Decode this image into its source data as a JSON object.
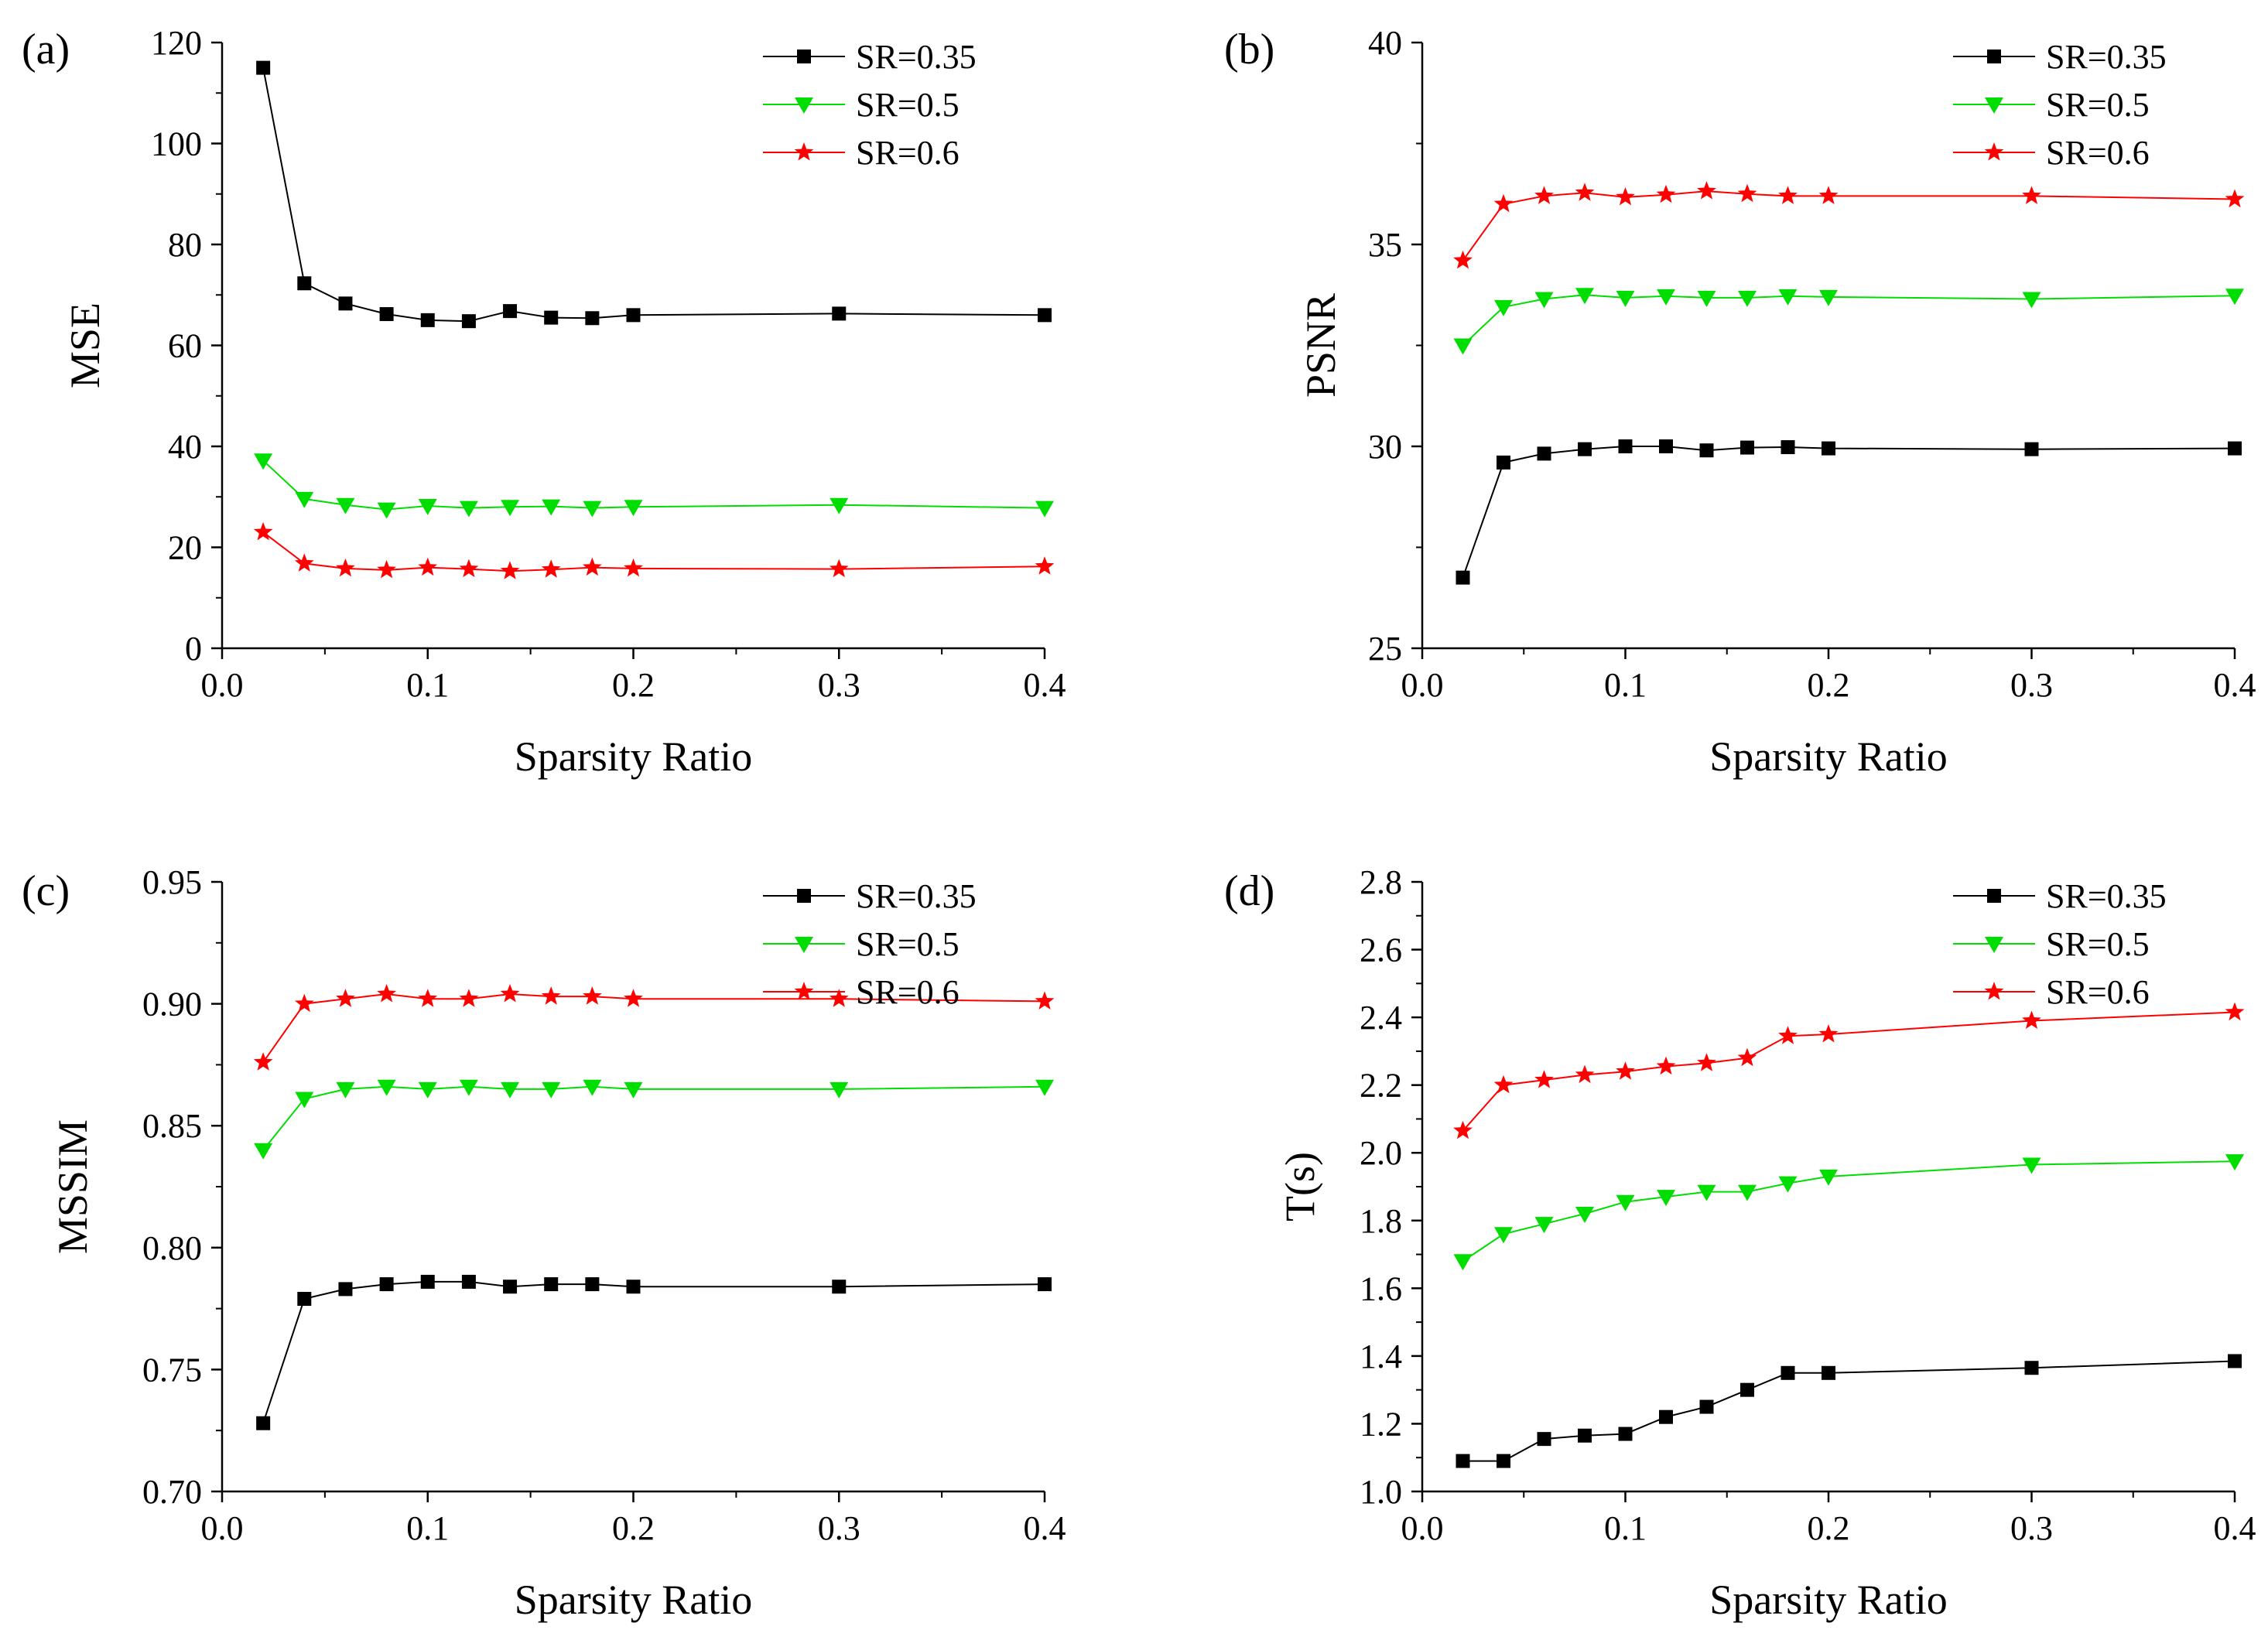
{
  "chart_data": [
    {
      "type": "line",
      "panel_label": "(a)",
      "xlabel": "Sparsity Ratio",
      "ylabel": "MSE",
      "xlim": [
        0.0,
        0.4
      ],
      "ylim": [
        0,
        120
      ],
      "xticks": [
        "0.0",
        "0.1",
        "0.2",
        "0.3",
        "0.4"
      ],
      "yticks": [
        "0",
        "20",
        "40",
        "60",
        "80",
        "100",
        "120"
      ],
      "legend_position": "top-right",
      "x": [
        0.02,
        0.04,
        0.06,
        0.08,
        0.1,
        0.12,
        0.14,
        0.16,
        0.18,
        0.2,
        0.3,
        0.4
      ],
      "series": [
        {
          "name": "SR=0.35",
          "color": "#000000",
          "marker": "square",
          "values": [
            115,
            72.3,
            68.3,
            66.2,
            65.0,
            64.8,
            66.8,
            65.5,
            65.4,
            66.0,
            66.3,
            66.0
          ]
        },
        {
          "name": "SR=0.5",
          "color": "#00dd00",
          "marker": "triangle-down",
          "values": [
            37.2,
            29.6,
            28.4,
            27.5,
            28.2,
            27.8,
            28.0,
            28.1,
            27.8,
            28.0,
            28.4,
            27.8
          ]
        },
        {
          "name": "SR=0.6",
          "color": "#ff0000",
          "marker": "star",
          "values": [
            23.0,
            16.8,
            15.8,
            15.5,
            16.0,
            15.7,
            15.3,
            15.6,
            16.0,
            15.8,
            15.7,
            16.2
          ]
        }
      ]
    },
    {
      "type": "line",
      "panel_label": "(b)",
      "xlabel": "Sparsity Ratio",
      "ylabel": "PSNR",
      "xlim": [
        0.0,
        0.4
      ],
      "ylim": [
        25,
        40
      ],
      "xticks": [
        "0.0",
        "0.1",
        "0.2",
        "0.3",
        "0.4"
      ],
      "yticks": [
        "25",
        "30",
        "35",
        "40"
      ],
      "legend_position": "top-right",
      "x": [
        0.02,
        0.04,
        0.06,
        0.08,
        0.1,
        0.12,
        0.14,
        0.16,
        0.18,
        0.2,
        0.3,
        0.4
      ],
      "series": [
        {
          "name": "SR=0.35",
          "color": "#000000",
          "marker": "square",
          "values": [
            26.75,
            29.6,
            29.82,
            29.93,
            30.0,
            30.0,
            29.9,
            29.97,
            29.98,
            29.95,
            29.93,
            29.95
          ]
        },
        {
          "name": "SR=0.5",
          "color": "#00dd00",
          "marker": "triangle-down",
          "values": [
            32.5,
            33.45,
            33.65,
            33.75,
            33.68,
            33.72,
            33.68,
            33.68,
            33.72,
            33.7,
            33.65,
            33.73
          ]
        },
        {
          "name": "SR=0.6",
          "color": "#ff0000",
          "marker": "star",
          "values": [
            34.6,
            36.0,
            36.2,
            36.28,
            36.17,
            36.23,
            36.32,
            36.25,
            36.2,
            36.2,
            36.2,
            36.12
          ]
        }
      ]
    },
    {
      "type": "line",
      "panel_label": "(c)",
      "xlabel": "Sparsity Ratio",
      "ylabel": "MSSIM",
      "xlim": [
        0.0,
        0.4
      ],
      "ylim": [
        0.7,
        0.95
      ],
      "xticks": [
        "0.0",
        "0.1",
        "0.2",
        "0.3",
        "0.4"
      ],
      "yticks": [
        "0.70",
        "0.75",
        "0.80",
        "0.85",
        "0.90",
        "0.95"
      ],
      "legend_position": "top-right",
      "x": [
        0.02,
        0.04,
        0.06,
        0.08,
        0.1,
        0.12,
        0.14,
        0.16,
        0.18,
        0.2,
        0.3,
        0.4
      ],
      "series": [
        {
          "name": "SR=0.35",
          "color": "#000000",
          "marker": "square",
          "values": [
            0.728,
            0.779,
            0.783,
            0.785,
            0.786,
            0.786,
            0.784,
            0.785,
            0.785,
            0.784,
            0.784,
            0.785
          ]
        },
        {
          "name": "SR=0.5",
          "color": "#00dd00",
          "marker": "triangle-down",
          "values": [
            0.84,
            0.861,
            0.865,
            0.866,
            0.865,
            0.866,
            0.865,
            0.865,
            0.866,
            0.865,
            0.865,
            0.866
          ]
        },
        {
          "name": "SR=0.6",
          "color": "#ff0000",
          "marker": "star",
          "values": [
            0.876,
            0.9,
            0.902,
            0.904,
            0.902,
            0.902,
            0.904,
            0.903,
            0.903,
            0.902,
            0.902,
            0.901
          ]
        }
      ]
    },
    {
      "type": "line",
      "panel_label": "(d)",
      "xlabel": "Sparsity Ratio",
      "ylabel": "T(s)",
      "xlim": [
        0.0,
        0.4
      ],
      "ylim": [
        1.0,
        2.8
      ],
      "xticks": [
        "0.0",
        "0.1",
        "0.2",
        "0.3",
        "0.4"
      ],
      "yticks": [
        "1.0",
        "1.2",
        "1.4",
        "1.6",
        "1.8",
        "2.0",
        "2.2",
        "2.4",
        "2.6",
        "2.8"
      ],
      "legend_position": "top-right",
      "x": [
        0.02,
        0.04,
        0.06,
        0.08,
        0.1,
        0.12,
        0.14,
        0.16,
        0.18,
        0.2,
        0.3,
        0.4
      ],
      "series": [
        {
          "name": "SR=0.35",
          "color": "#000000",
          "marker": "square",
          "values": [
            1.09,
            1.09,
            1.155,
            1.165,
            1.17,
            1.22,
            1.25,
            1.3,
            1.35,
            1.35,
            1.365,
            1.385
          ]
        },
        {
          "name": "SR=0.5",
          "color": "#00dd00",
          "marker": "triangle-down",
          "values": [
            1.68,
            1.76,
            1.79,
            1.82,
            1.855,
            1.87,
            1.885,
            1.885,
            1.91,
            1.93,
            1.965,
            1.975
          ]
        },
        {
          "name": "SR=0.6",
          "color": "#ff0000",
          "marker": "star",
          "values": [
            2.065,
            2.2,
            2.215,
            2.23,
            2.24,
            2.255,
            2.265,
            2.28,
            2.345,
            2.35,
            2.39,
            2.415
          ]
        }
      ]
    }
  ]
}
